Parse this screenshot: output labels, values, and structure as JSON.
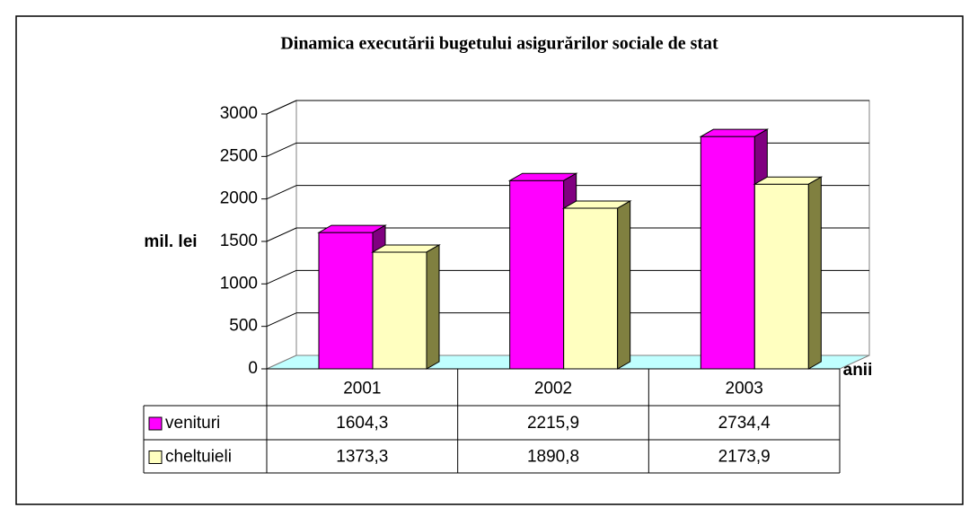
{
  "chart_data": {
    "type": "bar3d",
    "title": "Dinamica executării bugetului asigurărilor sociale de stat",
    "ylabel": "mil. lei",
    "xlabel": "anii",
    "categories": [
      "2001",
      "2002",
      "2003"
    ],
    "series": [
      {
        "name": "venituri",
        "color": "#ff00ff",
        "side_color": "#800080",
        "values": [
          1604.3,
          2215.9,
          2734.4
        ],
        "value_labels": [
          "1604,3",
          "2215,9",
          "2734,4"
        ]
      },
      {
        "name": "cheltuieli",
        "color": "#ffffc0",
        "side_color": "#808040",
        "values": [
          1373.3,
          1890.8,
          2173.9
        ],
        "value_labels": [
          "1373,3",
          "1890,8",
          "2173,9"
        ]
      }
    ],
    "ylim": [
      0,
      3000
    ],
    "yticks": [
      0,
      500,
      1000,
      1500,
      2000,
      2500,
      3000
    ],
    "grid": true,
    "floor_color": "#c0ffff"
  }
}
